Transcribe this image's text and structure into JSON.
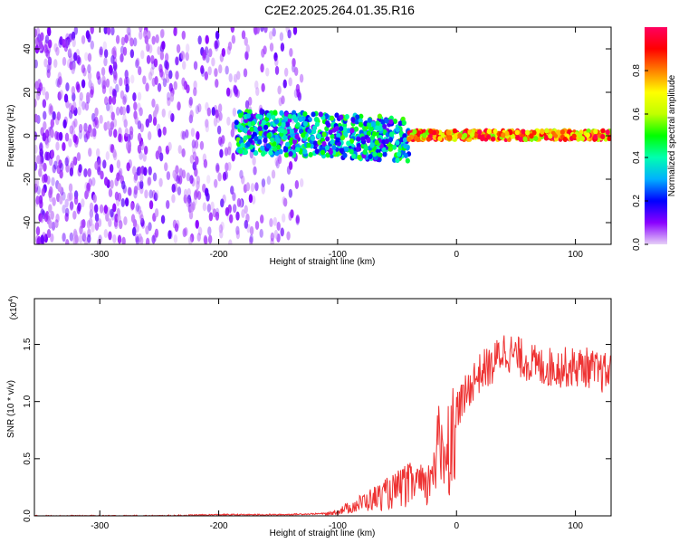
{
  "title": "C2E2.2025.264.01.35.R16",
  "chart_data": [
    {
      "type": "heatmap",
      "xlabel": "Height of straight line (km)",
      "ylabel": "Frequency (Hz)",
      "xlim": [
        -355,
        130
      ],
      "ylim": [
        -50,
        50
      ],
      "xticks": [
        -300,
        -200,
        -100,
        0,
        100
      ],
      "xtick_labels": [
        "-300",
        "-200",
        "-100",
        "0",
        "100"
      ],
      "yticks": [
        -40,
        -20,
        0,
        20,
        40
      ],
      "ytick_labels": [
        "-40",
        "-20",
        "0",
        "20",
        "40"
      ],
      "colorbar": {
        "label": "Normalized spectral amplitude",
        "range": [
          0,
          1
        ],
        "ticks": [
          0.0,
          0.2,
          0.4,
          0.6,
          0.8
        ],
        "tick_labels": [
          "0.0",
          "0.2",
          "0.4",
          "0.6",
          "0.8"
        ],
        "colormap": [
          "#e6d0f7",
          "#8a00ff",
          "#0000ff",
          "#00b0ff",
          "#00ffb0",
          "#00ff00",
          "#c0ff00",
          "#ffff00",
          "#ff8000",
          "#ff0000",
          "#ff0060"
        ]
      },
      "description_regions": [
        {
          "x_range": [
            -355,
            -130
          ],
          "freq_range": [
            -50,
            50
          ],
          "level": 0.05
        },
        {
          "x_range": [
            -185,
            -40
          ],
          "freq_range": [
            -8,
            12
          ],
          "level": 0.35
        },
        {
          "x_range": [
            -40,
            130
          ],
          "freq_range": [
            -2,
            3
          ],
          "level": 0.85
        }
      ]
    },
    {
      "type": "line",
      "xlabel": "Height of straight line (km)",
      "ylabel": "SNR (10 * v/v)",
      "y_multiplier_label": "(x10",
      "y_multiplier_exp": "4",
      "y_multiplier_close": ")",
      "xlim": [
        -355,
        130
      ],
      "ylim": [
        0,
        1.9
      ],
      "xticks": [
        -300,
        -200,
        -100,
        0,
        100
      ],
      "xtick_labels": [
        "-300",
        "-200",
        "-100",
        "0",
        "100"
      ],
      "yticks": [
        0.0,
        0.5,
        1.0,
        1.5
      ],
      "ytick_labels": [
        "0.0",
        "0.5",
        "1.0",
        "1.5"
      ],
      "series": [
        {
          "name": "SNR",
          "color": "#ee3333",
          "x": [
            -355,
            -300,
            -250,
            -200,
            -150,
            -110,
            -100,
            -90,
            -80,
            -70,
            -60,
            -50,
            -45,
            -40,
            -35,
            -30,
            -25,
            -22,
            -20,
            -15,
            -10,
            -5,
            0,
            5,
            10,
            15,
            20,
            25,
            30,
            35,
            40,
            50,
            60,
            70,
            80,
            90,
            100,
            110,
            120,
            130
          ],
          "y": [
            0.0,
            0.0,
            0.0,
            0.01,
            0.01,
            0.02,
            0.05,
            0.1,
            0.15,
            0.2,
            0.25,
            0.3,
            0.35,
            0.35,
            0.4,
            0.35,
            0.3,
            0.45,
            0.7,
            0.75,
            0.8,
            0.9,
            0.95,
            1.0,
            1.1,
            1.2,
            1.25,
            1.3,
            1.3,
            1.4,
            1.45,
            1.4,
            1.35,
            1.3,
            1.3,
            1.3,
            1.3,
            1.3,
            1.25,
            1.25
          ]
        }
      ]
    }
  ]
}
